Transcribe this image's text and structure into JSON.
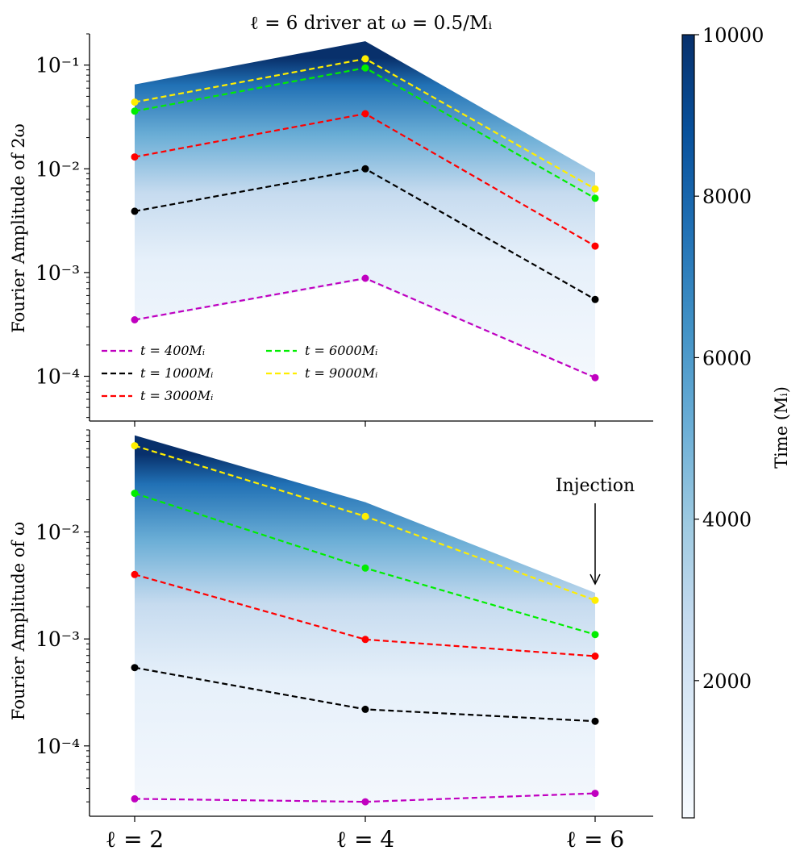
{
  "title": "ℓ = 6 driver at ω = 0.5/Mᵢ",
  "colorbar": {
    "label": "Time (Mᵢ)",
    "range": [
      300,
      10000
    ],
    "ticks": [
      2000,
      4000,
      6000,
      8000,
      10000
    ],
    "colormap": "Blues",
    "colors": [
      "#f7fbff",
      "#deebf7",
      "#c6dbef",
      "#9ecae1",
      "#6baed6",
      "#4292c6",
      "#2171b5",
      "#08519c",
      "#08306b"
    ]
  },
  "chart_data": [
    {
      "type": "line",
      "panel": "top",
      "ylabel": "Fourier Amplitude of 2ω",
      "yscale": "log",
      "ylim": [
        3.7e-05,
        0.2
      ],
      "yticks": [
        0.0001,
        0.001,
        0.01,
        0.1
      ],
      "ytick_labels": [
        "10⁻⁴",
        "10⁻³",
        "10⁻²",
        "10⁻¹"
      ],
      "categories": [
        "ℓ = 2",
        "ℓ = 4",
        "ℓ = 6"
      ],
      "envelope_max": [
        0.065,
        0.17,
        0.0092
      ],
      "envelope_min": [
        0.00034,
        0.00085,
        9.5e-05
      ],
      "series": [
        {
          "name": "t = 400Mᵢ",
          "color": "#c000c0",
          "values": [
            0.00035,
            0.00088,
            9.7e-05
          ]
        },
        {
          "name": "t = 1000Mᵢ",
          "color": "#000000",
          "values": [
            0.0039,
            0.01,
            0.00055
          ]
        },
        {
          "name": "t = 3000Mᵢ",
          "color": "#ff0000",
          "values": [
            0.013,
            0.034,
            0.0018
          ]
        },
        {
          "name": "t = 6000Mᵢ",
          "color": "#00ee00",
          "values": [
            0.036,
            0.094,
            0.0052
          ]
        },
        {
          "name": "t = 9000Mᵢ",
          "color": "#ffee00",
          "values": [
            0.044,
            0.115,
            0.0064
          ]
        }
      ],
      "legend": "lower-left",
      "grid": false
    },
    {
      "type": "line",
      "panel": "bottom",
      "ylabel": "Fourier Amplitude of ω",
      "yscale": "log",
      "ylim": [
        2.2e-05,
        0.09
      ],
      "yticks": [
        0.0001,
        0.001,
        0.01
      ],
      "ytick_labels": [
        "10⁻⁴",
        "10⁻³",
        "10⁻²"
      ],
      "categories": [
        "ℓ = 2",
        "ℓ = 4",
        "ℓ = 6"
      ],
      "envelope_max": [
        0.08,
        0.019,
        0.0027
      ],
      "envelope_min": [
        2.5e-05,
        2.5e-05,
        2.5e-05
      ],
      "series": [
        {
          "name": "t = 400Mᵢ",
          "color": "#c000c0",
          "values": [
            3.2e-05,
            3e-05,
            3.6e-05
          ]
        },
        {
          "name": "t = 1000Mᵢ",
          "color": "#000000",
          "values": [
            0.00054,
            0.00022,
            0.00017
          ]
        },
        {
          "name": "t = 3000Mᵢ",
          "color": "#ff0000",
          "values": [
            0.004,
            0.00099,
            0.00069
          ]
        },
        {
          "name": "t = 6000Mᵢ",
          "color": "#00ee00",
          "values": [
            0.023,
            0.0046,
            0.0011
          ]
        },
        {
          "name": "t = 9000Mᵢ",
          "color": "#ffee00",
          "values": [
            0.064,
            0.014,
            0.0023
          ]
        }
      ],
      "annotation": {
        "text": "Injection",
        "category_index": 2
      },
      "grid": false
    }
  ]
}
